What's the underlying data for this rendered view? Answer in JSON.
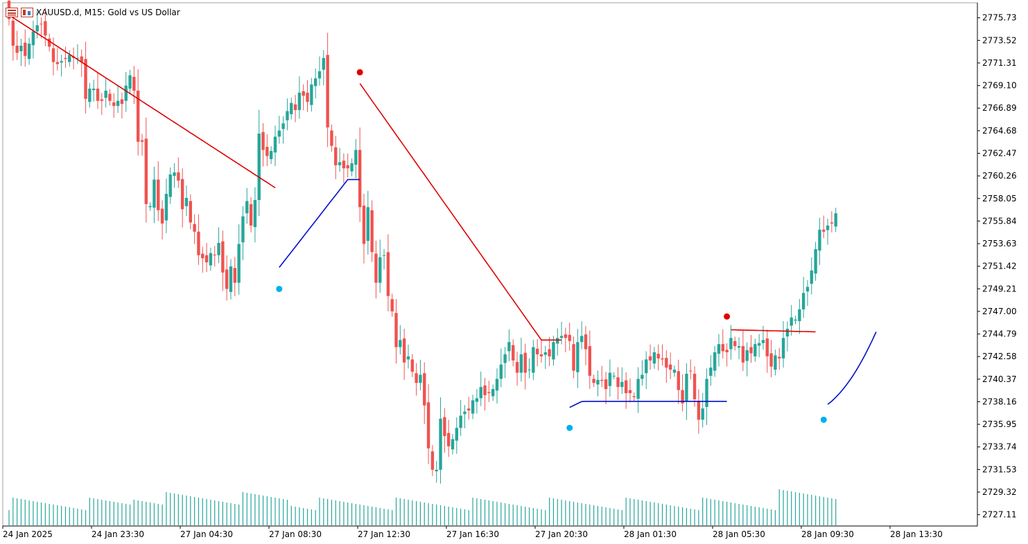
{
  "window": {
    "symbol": "XAUUSD.d",
    "timeframe": "M15",
    "description": "Gold vs US Dollar",
    "title_text": "XAUUSD.d, M15:  Gold vs US Dollar"
  },
  "colors": {
    "bull": "#26a69a",
    "bear": "#ef5350",
    "volume": "#26a69a",
    "upper_line": "#e00000",
    "lower_line": "#0010c8",
    "sell_dot": "#e00000",
    "buy_dot": "#00b0f0",
    "frame": "#a0a0a0"
  },
  "chart_data": {
    "type": "candlestick",
    "symbol": "XAUUSD.d",
    "timeframe": "M15",
    "ylim": [
      2726.0,
      2777.2
    ],
    "price_ticks": [
      "2775.73",
      "2773.52",
      "2771.31",
      "2769.10",
      "2766.89",
      "2764.68",
      "2762.47",
      "2760.26",
      "2758.05",
      "2755.84",
      "2753.63",
      "2751.42",
      "2749.21",
      "2747.00",
      "2744.79",
      "2742.58",
      "2740.37",
      "2738.16",
      "2735.95",
      "2733.74",
      "2731.53",
      "2729.32",
      "2727.11"
    ],
    "time_ticks": [
      {
        "label": "24 Jan 2025",
        "bar": 0
      },
      {
        "label": "24 Jan 23:30",
        "bar": 22
      },
      {
        "label": "27 Jan 04:30",
        "bar": 44
      },
      {
        "label": "27 Jan 08:30",
        "bar": 66
      },
      {
        "label": "27 Jan 12:30",
        "bar": 88
      },
      {
        "label": "27 Jan 16:30",
        "bar": 110
      },
      {
        "label": "27 Jan 20:30",
        "bar": 132
      },
      {
        "label": "28 Jan 01:30",
        "bar": 154
      },
      {
        "label": "28 Jan 05:30",
        "bar": 176
      },
      {
        "label": "28 Jan 09:30",
        "bar": 198
      },
      {
        "label": "28 Jan 13:30",
        "bar": 220
      }
    ],
    "candles_note": "open/high/low/close per bar; gap after bar 22 (weekend)",
    "closes": [
      2775.6,
      2773.0,
      2772.3,
      2773.0,
      2772.0,
      2773.2,
      2774.4,
      2775.0,
      2775.1,
      2774.0,
      2772.9,
      2771.4,
      2771.2,
      2771.5,
      2771.7,
      2772.1,
      2771.8,
      2771.8,
      2771.4,
      2767.8,
      2768.8,
      2768.8,
      2767.6,
      2767.6,
      2768.6,
      2767.6,
      2767.1,
      2767.6,
      2767.3,
      2769.1,
      2770.1,
      2768.6,
      2763.6,
      2763.6,
      2757.5,
      2757.3,
      2759.9,
      2756.9,
      2755.6,
      2758.5,
      2760.4,
      2760.6,
      2759.8,
      2757.0,
      2758.1,
      2755.7,
      2754.8,
      2752.5,
      2752.2,
      2751.8,
      2752.7,
      2752.5,
      2753.7,
      2750.8,
      2749.2,
      2751.4,
      2749.8,
      2753.6,
      2756.3,
      2757.8,
      2755.4,
      2757.9,
      2764.4,
      2762.8,
      2762.2,
      2762.7,
      2764.1,
      2764.7,
      2765.4,
      2766.6,
      2767.4,
      2766.7,
      2768.4,
      2768.1,
      2767.5,
      2769.2,
      2769.8,
      2770.5,
      2771.8,
      2765.0,
      2763.2,
      2761.3,
      2761.6,
      2761.0,
      2761.0,
      2761.5,
      2762.8,
      2757.2,
      2753.6,
      2757.2,
      2752.8,
      2749.8,
      2752.3,
      2752.5,
      2748.5,
      2747.0,
      2743.5,
      2744.2,
      2742.0,
      2742.6,
      2741.1,
      2740.0,
      2740.8,
      2737.8,
      2733.6,
      2731.5,
      2731.5,
      2736.5,
      2734.8,
      2733.8,
      2734.5,
      2735.6,
      2736.8,
      2737.2,
      2737.3,
      2738.3,
      2738.5,
      2739.6,
      2738.8,
      2739.0,
      2739.4,
      2740.4,
      2741.8,
      2742.8,
      2744.0,
      2742.2,
      2741.0,
      2742.8,
      2741.0,
      2741.3,
      2743.5,
      2742.8,
      2742.6,
      2743.0,
      2742.6,
      2744.0,
      2744.4,
      2744.6,
      2744.4,
      2744.1,
      2741.2,
      2744.0,
      2744.6,
      2743.3,
      2740.7,
      2740.0,
      2740.3,
      2740.2,
      2739.4,
      2741.0,
      2740.7,
      2739.6,
      2740.1,
      2739.0,
      2739.0,
      2738.6,
      2740.4,
      2740.8,
      2742.3,
      2742.2,
      2743.0,
      2742.4,
      2742.3,
      2741.5,
      2741.3,
      2741.3,
      2739.3,
      2738.0,
      2740.9,
      2741.2,
      2738.4,
      2736.4,
      2737.5,
      2740.4,
      2741.5,
      2743.0,
      2743.8,
      2743.1,
      2743.0,
      2744.4,
      2743.6,
      2743.6,
      2742.0,
      2743.2,
      2742.9,
      2743.8,
      2743.9,
      2744.2,
      2742.6,
      2741.6,
      2742.7,
      2742.4,
      2744.4,
      2745.3,
      2746.4,
      2746.2,
      2747.2,
      2748.8,
      2749.4,
      2751.0,
      2753.1,
      2755.0,
      2754.8,
      2755.4,
      2755.6,
      2756.6
    ],
    "upper_band": {
      "start_bar": 0,
      "end_bar": 66,
      "start_value": 2776.0,
      "end_value": 2759.1
    },
    "upper_band_2": {
      "start_bar": 87,
      "end_bar": 137,
      "start_value": 2769.3,
      "end_value": 2744.2
    },
    "upper_band_3": {
      "start_bar": 179,
      "end_bar": 200,
      "start_value": 2745.2,
      "end_value": 2745.0
    },
    "lower_band": {
      "start_bar": 67,
      "end_bar": 87,
      "start_value": 2751.3,
      "end_value": 2759.9
    },
    "lower_band_2": {
      "start_bar": 139,
      "end_bar": 178,
      "start_value": 2737.6,
      "end_value": 2738.2
    },
    "lower_band_3": {
      "start_bar": 203,
      "end_bar": 215,
      "start_value": 2737.9,
      "end_value": 2745.0
    },
    "sell_signals": [
      {
        "bar": 87,
        "value": 2770.4
      },
      {
        "bar": 178,
        "value": 2746.5
      }
    ],
    "buy_signals": [
      {
        "bar": 67,
        "value": 2749.2
      },
      {
        "bar": 139,
        "value": 2735.6
      },
      {
        "bar": 202,
        "value": 2736.4
      }
    ]
  }
}
